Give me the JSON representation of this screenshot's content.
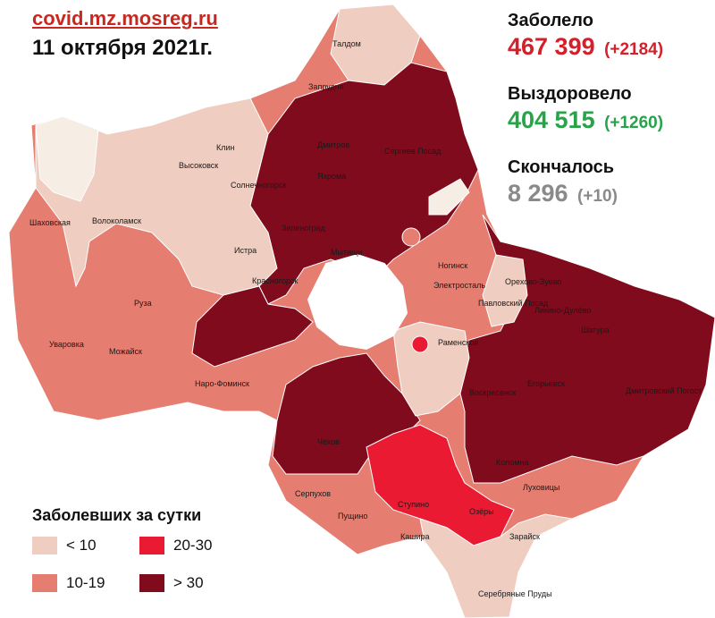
{
  "header": {
    "source_link": "covid.mz.mosreg.ru",
    "date": "11 октября 2021г."
  },
  "stats": {
    "cases": {
      "label": "Заболело",
      "value": "467 399",
      "delta": "(+2184)",
      "color": "#d3202b"
    },
    "recovered": {
      "label": "Выздоровело",
      "value": "404 515",
      "delta": "(+1260)",
      "color": "#27a34a"
    },
    "deaths": {
      "label": "Скончалось",
      "value": "8 296",
      "delta": "(+10)",
      "color": "#8a8a8a"
    }
  },
  "legend": {
    "title": "Заболевших за сутки",
    "items": [
      {
        "label": "< 10",
        "color": "#efcdc1"
      },
      {
        "label": "10-19",
        "color": "#e57d70"
      },
      {
        "label": "20-30",
        "color": "#ea1a33"
      },
      {
        "label": "> 30",
        "color": "#7f0b1d"
      }
    ]
  },
  "map": {
    "place_labels": [
      "Талдом",
      "Запрудня",
      "Дмитров",
      "Сергиев Посад",
      "Яхрома",
      "Клин",
      "Высоковск",
      "Солнечногорск",
      "Шаховская",
      "Волоколамск",
      "Зеленоград",
      "Истра",
      "Мытищи",
      "Ногинск",
      "Электросталь",
      "Красногорск",
      "Орехово-Зуево",
      "Павловский Посад",
      "Ликино-Дулёво",
      "Шатура",
      "Руза",
      "Раменское",
      "Уваровка",
      "Можайск",
      "Егорьевск",
      "Воскресенск",
      "Наро-Фоминск",
      "Дмитровский Погост",
      "Чехов",
      "Коломна",
      "Серпухов",
      "Ступино",
      "Луховицы",
      "Пущино",
      "Озёры",
      "Кашира",
      "Зарайск",
      "Серебряные Пруды"
    ]
  }
}
